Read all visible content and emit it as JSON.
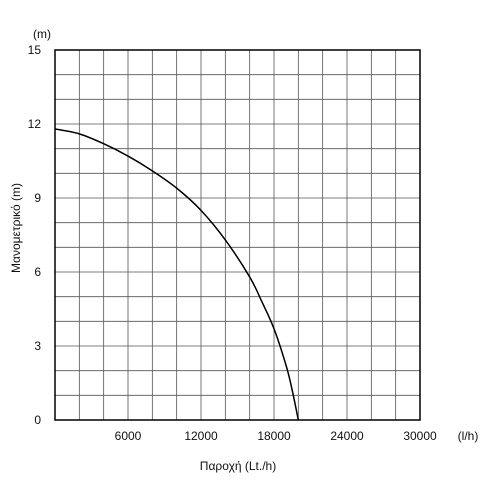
{
  "chart_data": {
    "type": "line",
    "title": "",
    "xlabel": "Παροχή (Lt./h)",
    "ylabel": "Μανομετρικό (m)",
    "x_unit": "(l/h)",
    "y_unit": "(m)",
    "xlim": [
      0,
      30000
    ],
    "ylim": [
      0,
      15
    ],
    "x_ticks": [
      6000,
      12000,
      18000,
      24000,
      30000
    ],
    "y_ticks": [
      0,
      3,
      6,
      9,
      12,
      15
    ],
    "x_tick_labels": [
      "6000",
      "12000",
      "18000",
      "24000",
      "30000"
    ],
    "y_tick_labels": [
      "0",
      "3",
      "6",
      "9",
      "12",
      "15"
    ],
    "grid": true,
    "grid_x_step": 2000,
    "grid_y_step": 1,
    "series": [
      {
        "color": "#000000",
        "x": [
          0,
          2000,
          4000,
          6000,
          8000,
          10000,
          12000,
          14000,
          16000,
          17000,
          18000,
          19000,
          19500,
          20000
        ],
        "y": [
          11.8,
          11.6,
          11.2,
          10.7,
          10.1,
          9.4,
          8.5,
          7.3,
          5.8,
          4.8,
          3.7,
          2.2,
          1.2,
          0
        ]
      }
    ]
  }
}
